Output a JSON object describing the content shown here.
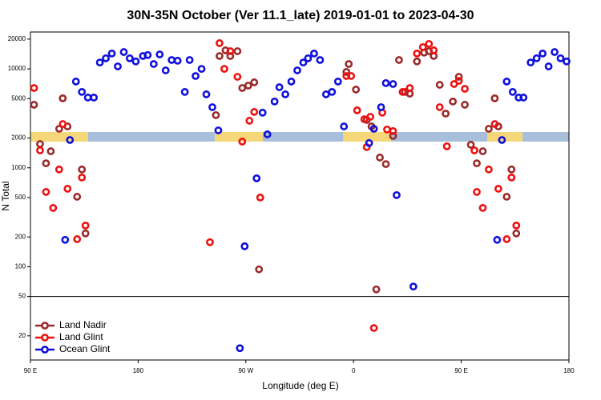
{
  "chart_data": {
    "type": "scatter",
    "title": "30N-35N October (Ver 11.1_late)   2019-01-01 to 2023-04-30",
    "xlabel": "Longitude (deg E)",
    "ylabel": "N Total",
    "xlim": [
      90,
      540
    ],
    "xticks": [
      {
        "value": 90,
        "label": "90 E"
      },
      180,
      {
        "value": 270,
        "label": "90 W"
      },
      {
        "value": 360,
        "label": "0"
      },
      {
        "value": 450,
        "label": "90 E"
      },
      {
        "value": 540,
        "label": "180"
      }
    ],
    "ylim": [
      11.4,
      23600
    ],
    "yticks": [
      20,
      50,
      100,
      200,
      500,
      1000,
      2000,
      5000,
      10000,
      20000
    ],
    "log_y": true,
    "legend": "lower left",
    "series": [
      {
        "name": "Land Nadir",
        "color": "#9b2a2a",
        "x": [
          93,
          98,
          103,
          107,
          114,
          117,
          121,
          129,
          133,
          136,
          245,
          248,
          253,
          257,
          263,
          267,
          272,
          277,
          281,
          354,
          356,
          362,
          371,
          375,
          379,
          382,
          387,
          393,
          398,
          403,
          407,
          413,
          419,
          423,
          427,
          432,
          437,
          443,
          448,
          453,
          458,
          463,
          468,
          473,
          478,
          481,
          488,
          492,
          496
        ],
        "values": [
          4340,
          1740,
          1110,
          1470,
          2480,
          5040,
          2620,
          510,
          962,
          217,
          3410,
          13500,
          15400,
          13500,
          15100,
          6410,
          6780,
          7310,
          94,
          9310,
          11200,
          6180,
          3050,
          2620,
          59,
          1270,
          1090,
          2100,
          12300,
          5850,
          5620,
          11900,
          14600,
          15100,
          13500,
          6900,
          3530,
          4680,
          8320,
          4340,
          1710,
          1110,
          1470,
          2480,
          5040,
          2620,
          510,
          962,
          217
        ]
      },
      {
        "name": "Land Glint",
        "color": "#ee1111",
        "x": [
          93,
          98,
          103,
          109,
          114,
          117,
          121,
          129,
          133,
          136,
          240,
          248,
          252,
          257,
          263,
          267,
          273,
          277,
          282,
          354,
          358,
          363,
          369,
          371,
          374,
          377,
          384,
          388,
          393,
          401,
          407,
          413,
          418,
          423,
          427,
          432,
          438,
          444,
          448,
          453,
          461,
          463,
          468,
          473,
          478,
          481,
          488,
          492,
          496
        ],
        "values": [
          6410,
          1500,
          570,
          393,
          962,
          2770,
          614,
          190,
          798,
          261,
          177,
          18200,
          10000,
          15100,
          8320,
          1840,
          2990,
          3670,
          501,
          8470,
          8470,
          3810,
          3100,
          1620,
          3280,
          24,
          3610,
          2440,
          2350,
          5850,
          6410,
          14300,
          16600,
          17900,
          15400,
          4100,
          1650,
          7030,
          7580,
          6290,
          1500,
          570,
          393,
          962,
          2770,
          614,
          190,
          798,
          261
        ]
      },
      {
        "name": "Ocean Glint",
        "color": "#1010dd",
        "x": [
          119,
          123,
          128,
          133,
          138,
          143,
          148,
          153,
          158,
          163,
          168,
          173,
          178,
          184,
          188,
          193,
          198,
          203,
          208,
          213,
          219,
          223,
          228,
          233,
          237,
          242,
          247,
          265,
          269,
          279,
          284,
          288,
          294,
          298,
          303,
          308,
          313,
          318,
          322,
          327,
          332,
          337,
          342,
          347,
          352,
          373,
          377,
          383,
          387,
          393,
          396,
          410,
          480,
          484,
          488,
          493,
          498,
          502,
          508,
          513,
          518,
          523,
          528,
          533,
          538
        ],
        "values": [
          187,
          1910,
          7450,
          5850,
          5130,
          5130,
          11600,
          12800,
          14300,
          10600,
          14800,
          12800,
          11900,
          13500,
          13800,
          11200,
          14000,
          9660,
          12300,
          12100,
          5850,
          12300,
          8470,
          10000,
          5530,
          4100,
          2390,
          15,
          161,
          783,
          3610,
          2180,
          4680,
          6530,
          5530,
          7450,
          9660,
          11600,
          12800,
          14300,
          12300,
          5530,
          5850,
          7450,
          2620,
          1780,
          2480,
          4100,
          7180,
          7030,
          530,
          63,
          187,
          1910,
          7450,
          5850,
          5130,
          5130,
          11600,
          12800,
          14300,
          10600,
          14800,
          12800,
          11900
        ]
      }
    ]
  }
}
